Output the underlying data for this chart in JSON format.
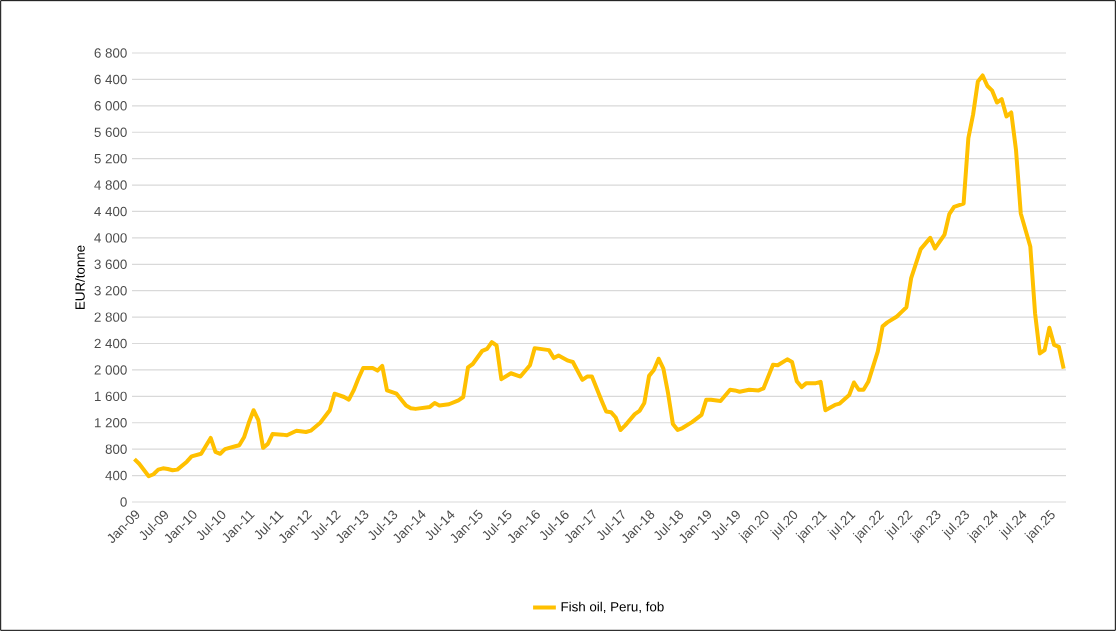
{
  "chart_data": {
    "type": "line",
    "ylabel": "EUR/tonne",
    "xlim": [
      "2008-12-16",
      "2025-04-16"
    ],
    "ylim": [
      0,
      6800
    ],
    "yticks": [
      {
        "value": 0,
        "label": "0"
      },
      {
        "value": 400,
        "label": "400"
      },
      {
        "value": 800,
        "label": "800"
      },
      {
        "value": 1200,
        "label": "1 200"
      },
      {
        "value": 1600,
        "label": "1 600"
      },
      {
        "value": 2000,
        "label": "2 000"
      },
      {
        "value": 2400,
        "label": "2 400"
      },
      {
        "value": 2800,
        "label": "2 800"
      },
      {
        "value": 3200,
        "label": "3 200"
      },
      {
        "value": 3600,
        "label": "3 600"
      },
      {
        "value": 4000,
        "label": "4 000"
      },
      {
        "value": 4400,
        "label": "4 400"
      },
      {
        "value": 4800,
        "label": "4 800"
      },
      {
        "value": 5200,
        "label": "5 200"
      },
      {
        "value": 5600,
        "label": "5 600"
      },
      {
        "value": 6000,
        "label": "6 000"
      },
      {
        "value": 6400,
        "label": "6 400"
      },
      {
        "value": 6800,
        "label": "6 800"
      }
    ],
    "xticks": [
      {
        "value": "2009-01",
        "label": "Jan-09"
      },
      {
        "value": "2009-07",
        "label": "Jul-09"
      },
      {
        "value": "2010-01",
        "label": "Jan-10"
      },
      {
        "value": "2010-07",
        "label": "Jul-10"
      },
      {
        "value": "2011-01",
        "label": "Jan-11"
      },
      {
        "value": "2011-07",
        "label": "Jul-11"
      },
      {
        "value": "2012-01",
        "label": "Jan-12"
      },
      {
        "value": "2012-07",
        "label": "Jul-12"
      },
      {
        "value": "2013-01",
        "label": "Jan-13"
      },
      {
        "value": "2013-07",
        "label": "Jul-13"
      },
      {
        "value": "2014-01",
        "label": "Jan-14"
      },
      {
        "value": "2014-07",
        "label": "Jul-14"
      },
      {
        "value": "2015-01",
        "label": "Jan-15"
      },
      {
        "value": "2015-07",
        "label": "Jul-15"
      },
      {
        "value": "2016-01",
        "label": "Jan-16"
      },
      {
        "value": "2016-07",
        "label": "Jul-16"
      },
      {
        "value": "2017-01",
        "label": "Jan-17"
      },
      {
        "value": "2017-07",
        "label": "Jul-17"
      },
      {
        "value": "2018-01",
        "label": "Jan-18"
      },
      {
        "value": "2018-07",
        "label": "Jul-18"
      },
      {
        "value": "2019-01",
        "label": "Jan-19"
      },
      {
        "value": "2019-07",
        "label": "Jul-19"
      },
      {
        "value": "2020-01",
        "label": "jan.20"
      },
      {
        "value": "2020-07",
        "label": "jul.20"
      },
      {
        "value": "2021-01",
        "label": "jan.21"
      },
      {
        "value": "2021-07",
        "label": "jul.21"
      },
      {
        "value": "2022-01",
        "label": "jan.22"
      },
      {
        "value": "2022-07",
        "label": "jul.22"
      },
      {
        "value": "2023-01",
        "label": "jan.23"
      },
      {
        "value": "2023-07",
        "label": "jul.23"
      },
      {
        "value": "2024-01",
        "label": "jan.24"
      },
      {
        "value": "2024-07",
        "label": "jul.24"
      },
      {
        "value": "2025-01",
        "label": "jan.25"
      }
    ],
    "grid": "y",
    "legend": "bottom",
    "marker": "none",
    "line_style": "solid",
    "series": [
      {
        "name": "Fish oil, Peru, fob",
        "color": "#ffc000",
        "x": [
          "2009-01",
          "2009-02",
          "2009-04",
          "2009-05",
          "2009-06",
          "2009-07",
          "2009-08",
          "2009-09",
          "2009-10",
          "2009-12",
          "2010-01",
          "2010-03",
          "2010-05",
          "2010-06",
          "2010-07",
          "2010-08",
          "2010-10",
          "2010-11",
          "2010-12",
          "2011-01",
          "2011-02",
          "2011-03",
          "2011-04",
          "2011-05",
          "2011-06",
          "2011-08",
          "2011-09",
          "2011-11",
          "2012-01",
          "2012-02",
          "2012-04",
          "2012-06",
          "2012-07",
          "2012-09",
          "2012-10",
          "2012-11",
          "2012-12",
          "2013-01",
          "2013-03",
          "2013-04",
          "2013-05",
          "2013-06",
          "2013-08",
          "2013-10",
          "2013-11",
          "2013-12",
          "2014-03",
          "2014-04",
          "2014-05",
          "2014-07",
          "2014-09",
          "2014-10",
          "2014-11",
          "2014-12",
          "2015-02",
          "2015-03",
          "2015-04",
          "2015-05",
          "2015-06",
          "2015-08",
          "2015-10",
          "2015-12",
          "2016-01",
          "2016-04",
          "2016-05",
          "2016-06",
          "2016-08",
          "2016-09",
          "2016-11",
          "2016-12",
          "2017-01",
          "2017-03",
          "2017-04",
          "2017-05",
          "2017-06",
          "2017-07",
          "2017-08",
          "2017-10",
          "2017-11",
          "2017-12",
          "2018-01",
          "2018-02",
          "2018-03",
          "2018-04",
          "2018-05",
          "2018-06",
          "2018-07",
          "2018-08",
          "2018-10",
          "2018-12",
          "2019-01",
          "2019-02",
          "2019-04",
          "2019-06",
          "2019-07",
          "2019-08",
          "2019-10",
          "2019-12",
          "2020-01",
          "2020-03",
          "2020-04",
          "2020-06",
          "2020-07",
          "2020-08",
          "2020-09",
          "2020-10",
          "2020-12",
          "2021-01",
          "2021-02",
          "2021-04",
          "2021-05",
          "2021-07",
          "2021-08",
          "2021-09",
          "2021-10",
          "2021-11",
          "2021-12",
          "2022-01",
          "2022-02",
          "2022-03",
          "2022-05",
          "2022-06",
          "2022-07",
          "2022-08",
          "2022-10",
          "2022-12",
          "2023-01",
          "2023-03",
          "2023-04",
          "2023-05",
          "2023-07",
          "2023-08",
          "2023-09",
          "2023-10",
          "2023-11",
          "2023-12",
          "2024-01",
          "2024-02",
          "2024-03",
          "2024-04",
          "2024-05",
          "2024-06",
          "2024-07",
          "2024-09",
          "2024-10",
          "2024-11",
          "2024-12",
          "2025-01",
          "2025-02",
          "2025-03",
          "2025-04"
        ],
        "values": [
          650,
          580,
          390,
          420,
          490,
          510,
          500,
          480,
          490,
          610,
          690,
          730,
          970,
          760,
          730,
          800,
          840,
          860,
          980,
          1200,
          1390,
          1240,
          820,
          880,
          1030,
          1020,
          1010,
          1080,
          1060,
          1080,
          1200,
          1390,
          1640,
          1590,
          1550,
          1690,
          1870,
          2030,
          2030,
          1990,
          2060,
          1690,
          1640,
          1460,
          1420,
          1410,
          1440,
          1500,
          1460,
          1480,
          1540,
          1590,
          2040,
          2090,
          2290,
          2320,
          2420,
          2370,
          1860,
          1950,
          1900,
          2070,
          2330,
          2300,
          2180,
          2220,
          2140,
          2120,
          1850,
          1900,
          1900,
          1540,
          1370,
          1360,
          1280,
          1090,
          1160,
          1330,
          1380,
          1500,
          1910,
          2000,
          2170,
          2020,
          1640,
          1180,
          1090,
          1120,
          1210,
          1320,
          1550,
          1550,
          1530,
          1700,
          1690,
          1670,
          1700,
          1690,
          1720,
          2080,
          2070,
          2160,
          2120,
          1830,
          1740,
          1800,
          1800,
          1820,
          1390,
          1470,
          1490,
          1620,
          1810,
          1700,
          1700,
          1820,
          2050,
          2280,
          2660,
          2720,
          2810,
          2880,
          2950,
          3390,
          3830,
          4000,
          3840,
          4050,
          4360,
          4470,
          4520,
          5510,
          5870,
          6370,
          6460,
          6300,
          6230,
          6050,
          6100,
          5840,
          5900,
          5330,
          4370,
          3870,
          2860,
          2250,
          2300,
          2640,
          2380,
          2350,
          2020
        ]
      }
    ]
  }
}
